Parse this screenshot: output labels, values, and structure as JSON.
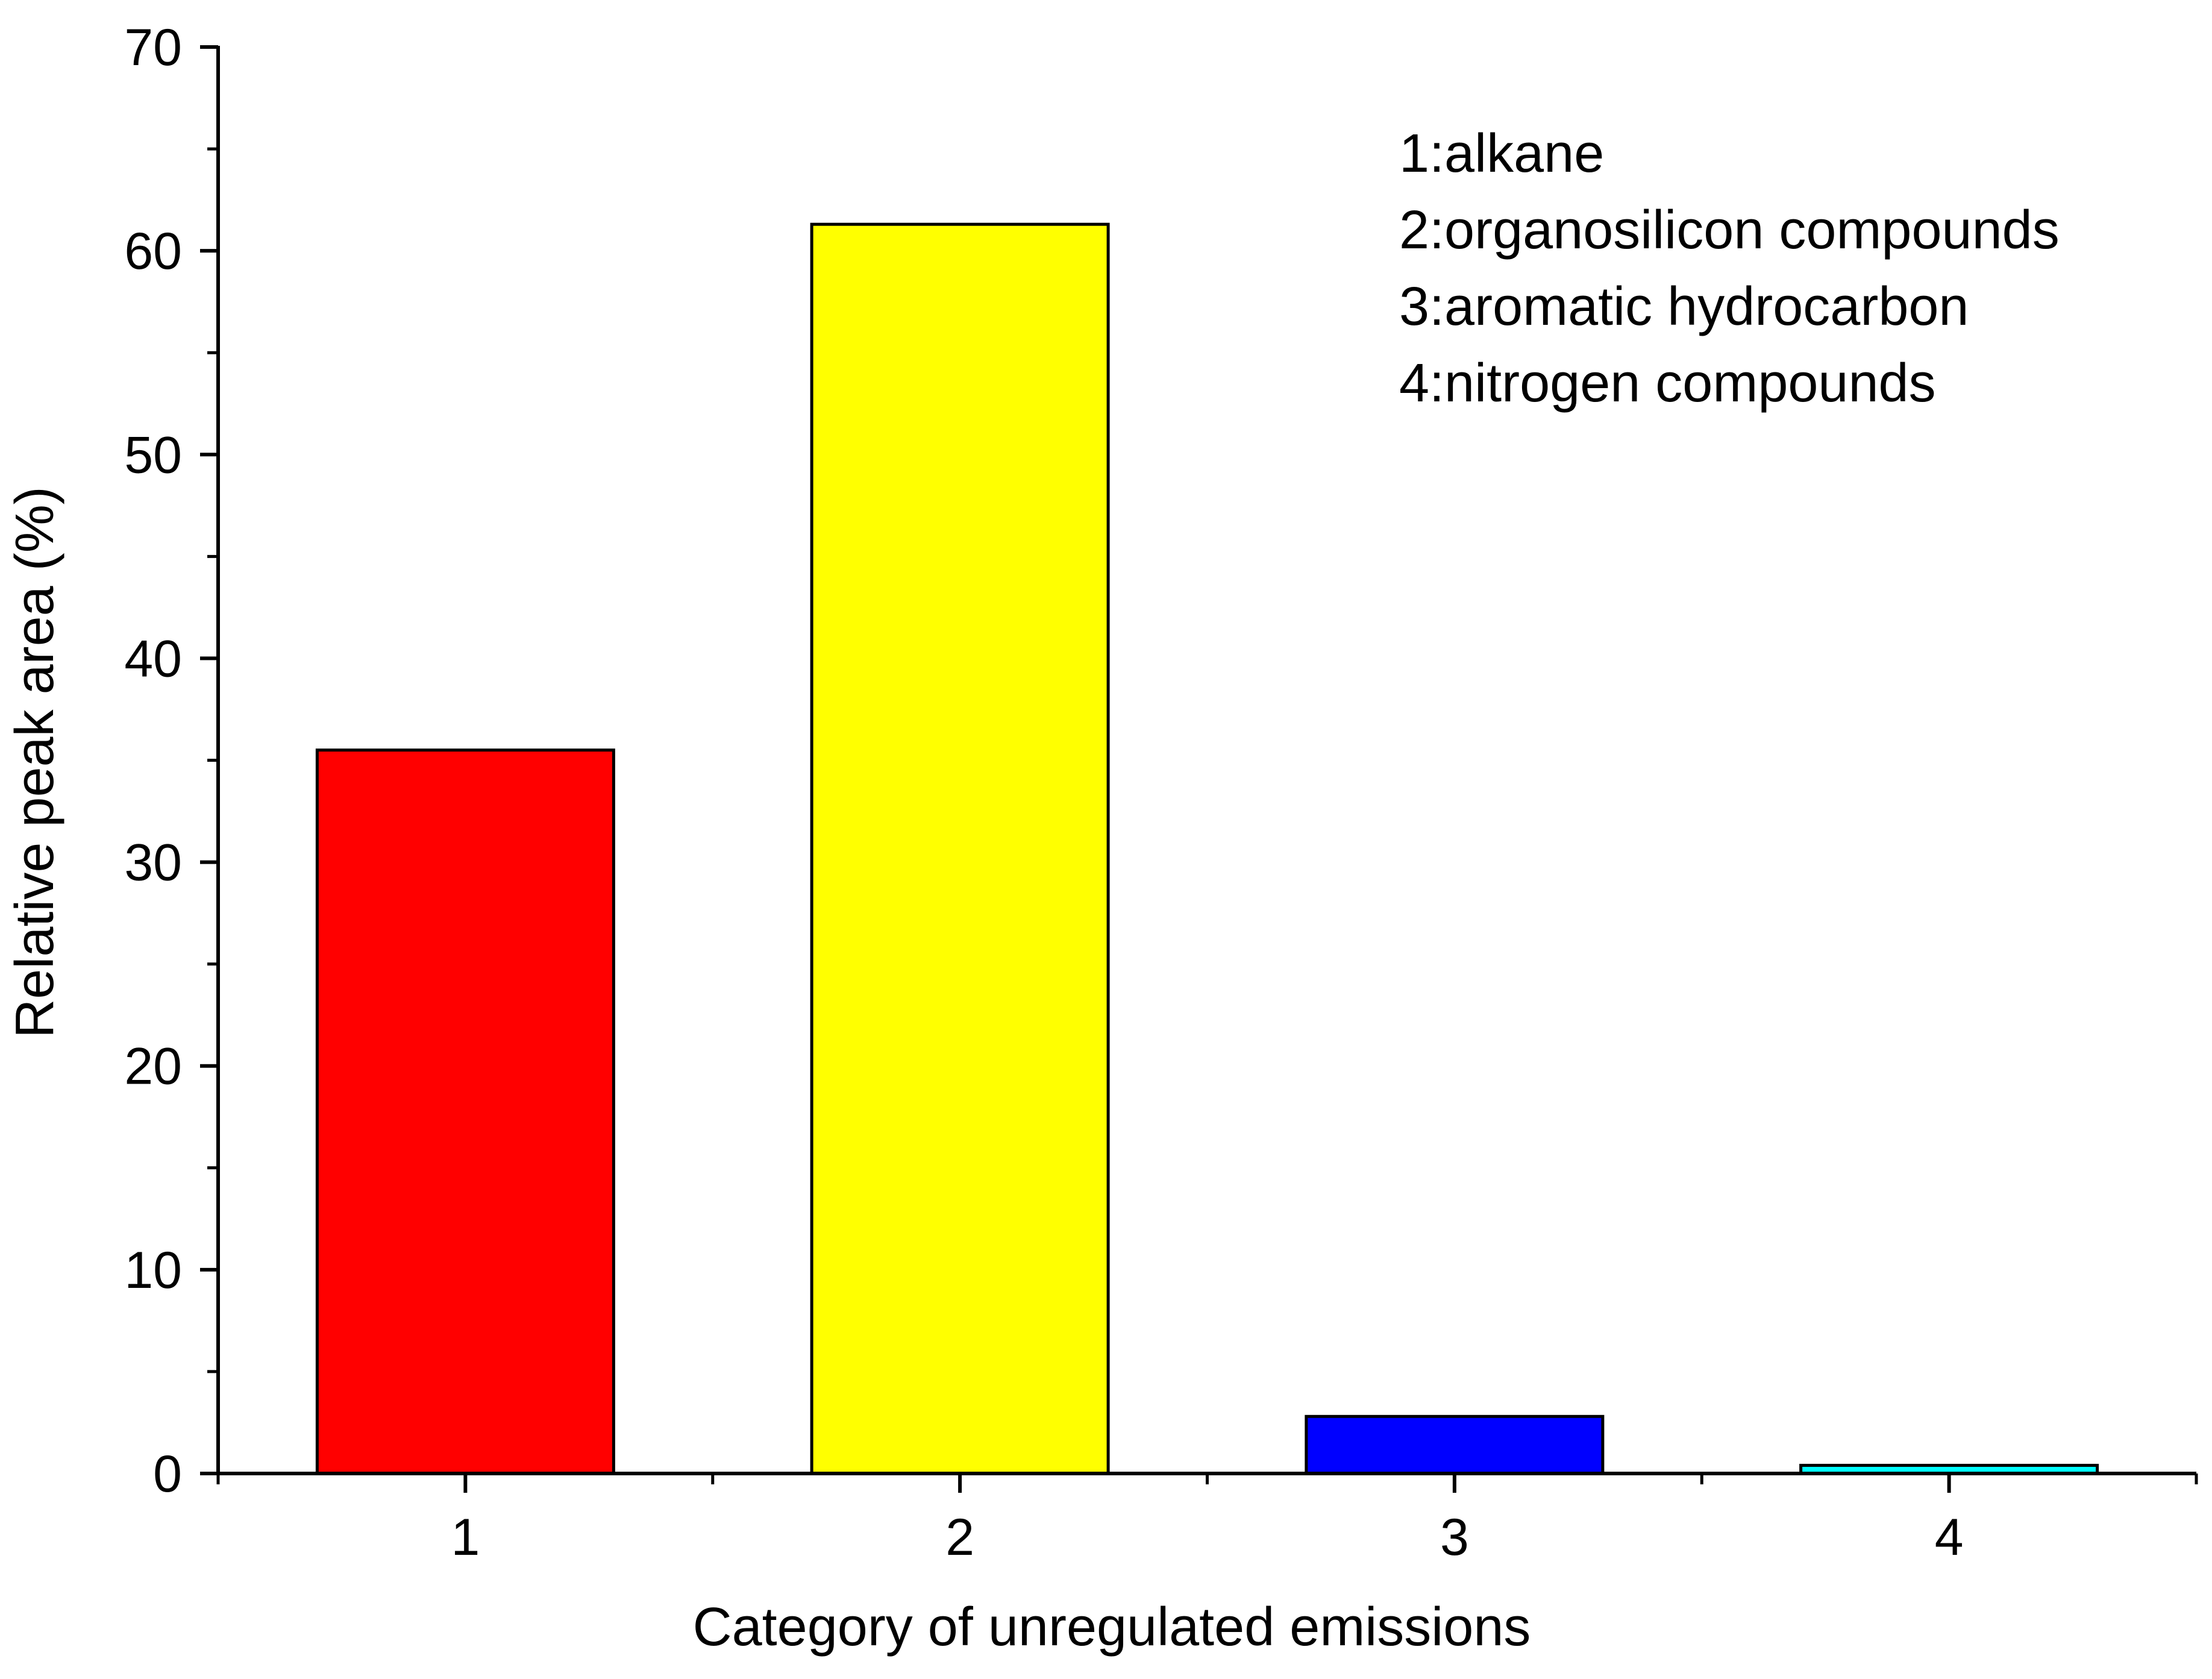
{
  "chart_data": {
    "type": "bar",
    "categories": [
      "1",
      "2",
      "3",
      "4"
    ],
    "values": [
      35.5,
      61.3,
      2.8,
      0.4
    ],
    "colors": [
      "#ff0000",
      "#ffff00",
      "#0000ff",
      "#00ffff"
    ],
    "xlabel": "Category of unregulated emissions",
    "ylabel": "Relative peak area (%)",
    "ylim": [
      0,
      70
    ],
    "yticks": [
      0,
      10,
      20,
      30,
      40,
      50,
      60,
      70
    ],
    "grid": false,
    "legend_placement": "top-right",
    "legend": [
      "1:alkane",
      "2:organosilicon compounds",
      "3:aromatic hydrocarbon",
      "4:nitrogen compounds"
    ]
  }
}
